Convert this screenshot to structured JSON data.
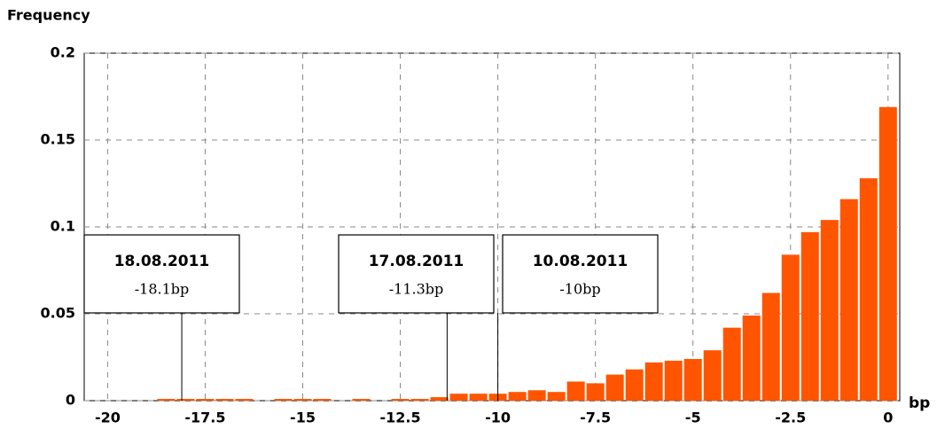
{
  "chart_data": {
    "type": "histogram",
    "y_label": "Frequency",
    "x_label": "bp",
    "bins": [
      -20.25,
      -19.75,
      -19.25,
      -18.75,
      -18.25,
      -17.75,
      -17.25,
      -16.75,
      -16.25,
      -15.75,
      -15.25,
      -14.75,
      -14.25,
      -13.75,
      -13.25,
      -12.75,
      -12.25,
      -11.75,
      -11.25,
      -10.75,
      -10.25,
      -9.75,
      -9.25,
      -8.75,
      -8.25,
      -7.75,
      -7.25,
      -6.75,
      -6.25,
      -5.75,
      -5.25,
      -4.75,
      -4.25,
      -3.75,
      -3.25,
      -2.75,
      -2.25,
      -1.75,
      -1.25,
      -0.75,
      -0.25,
      0.25
    ],
    "values": [
      0,
      0,
      0,
      0.001,
      0.001,
      0.001,
      0.001,
      0.001,
      0,
      0.001,
      0.001,
      0.001,
      0,
      0.001,
      0,
      0.001,
      0.001,
      0.002,
      0.004,
      0.004,
      0.004,
      0.005,
      0.006,
      0.005,
      0.011,
      0.01,
      0.015,
      0.018,
      0.022,
      0.023,
      0.024,
      0.029,
      0.042,
      0.049,
      0.062,
      0.084,
      0.097,
      0.104,
      0.116,
      0.128,
      0.169
    ],
    "color": "#ff5500",
    "xlim": [
      -20.6,
      0.3
    ],
    "xticks": [
      -20,
      -17.5,
      -15,
      -12.5,
      -10,
      -7.5,
      -5,
      -2.5,
      0
    ],
    "ylim": [
      0,
      0.2
    ],
    "yticks": [
      0,
      0.05,
      0.1,
      0.15,
      0.2
    ],
    "grid": true,
    "annotations": [
      {
        "date": "18.08.2011",
        "x": -18.1,
        "label": "-18.1bp"
      },
      {
        "date": "17.08.2011",
        "x": -11.3,
        "label": "-11.3bp"
      },
      {
        "date": "10.08.2011",
        "x": -10,
        "label": "-10bp"
      }
    ]
  }
}
